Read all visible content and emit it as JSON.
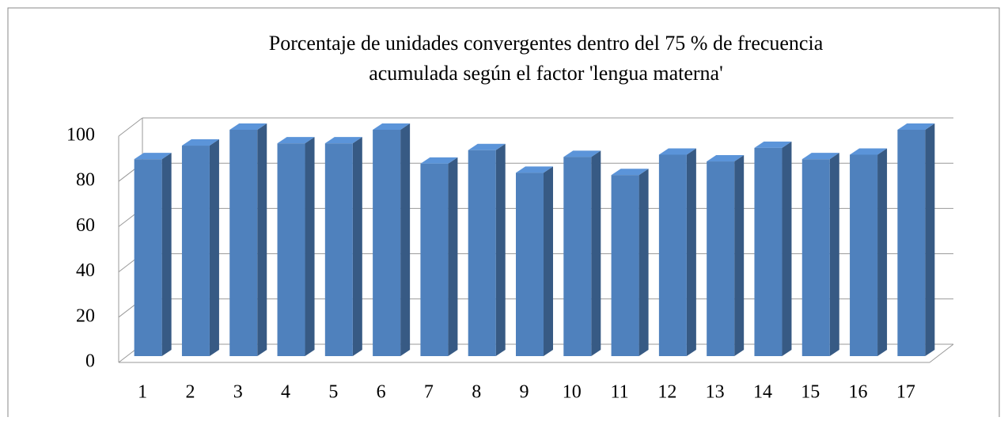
{
  "chart_data": {
    "type": "bar3d",
    "title": [
      "Porcentaje de unidades convergentes dentro del 75 % de frecuencia",
      "acumulada según el factor 'lengua materna'"
    ],
    "categories": [
      "1",
      "2",
      "3",
      "4",
      "5",
      "6",
      "7",
      "8",
      "9",
      "10",
      "11",
      "12",
      "13",
      "14",
      "15",
      "16",
      "17"
    ],
    "values": [
      87,
      93,
      100,
      94,
      94,
      100,
      85,
      91,
      81,
      88,
      80,
      89,
      86,
      92,
      87,
      89,
      100
    ],
    "color": "#4f81bd",
    "ylim": [
      0,
      100
    ],
    "yticks": [
      0,
      20,
      40,
      60,
      80,
      100
    ],
    "grid": true
  }
}
